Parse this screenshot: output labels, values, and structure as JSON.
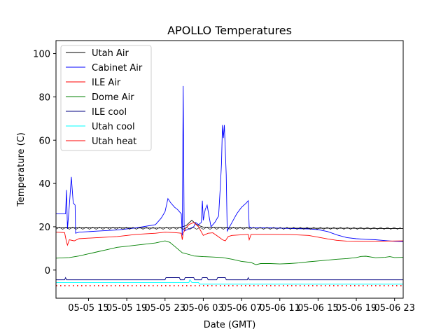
{
  "chart_data": {
    "type": "line",
    "title": "APOLLO Temperatures",
    "xlabel": "Date (GMT)",
    "ylabel": "Temperature (C)",
    "ylim": [
      -13,
      106
    ],
    "xlim": [
      11.6,
      47.9
    ],
    "x_units": "hours since 05-05 00 GMT",
    "xticks": [
      {
        "v": 15,
        "label": "05-05 15"
      },
      {
        "v": 19,
        "label": "05-05 19"
      },
      {
        "v": 23,
        "label": "05-05 23"
      },
      {
        "v": 27,
        "label": "05-06 03"
      },
      {
        "v": 31,
        "label": "05-06 07"
      },
      {
        "v": 35,
        "label": "05-06 11"
      },
      {
        "v": 39,
        "label": "05-06 15"
      },
      {
        "v": 43,
        "label": "05-06 19"
      },
      {
        "v": 47,
        "label": "05-06 23"
      }
    ],
    "yticks": [
      0,
      20,
      40,
      60,
      80,
      100
    ],
    "grid": false,
    "legend_position": "top-left",
    "series": [
      {
        "name": "Utah Air",
        "color": "#000000",
        "points": [
          [
            11.6,
            19.5
          ],
          [
            14,
            19.5
          ],
          [
            18,
            19.5
          ],
          [
            22,
            19.4
          ],
          [
            24.5,
            19.6
          ],
          [
            25.2,
            20.5
          ],
          [
            25.8,
            23
          ],
          [
            26.3,
            21
          ],
          [
            27,
            19.8
          ],
          [
            30,
            19.5
          ],
          [
            34,
            19.4
          ],
          [
            38,
            19.3
          ],
          [
            42,
            19.3
          ],
          [
            46,
            19.2
          ],
          [
            47.9,
            19.2
          ]
        ]
      },
      {
        "name": "Cabinet Air",
        "color": "#0000ff",
        "points": [
          [
            11.6,
            26
          ],
          [
            12.6,
            26
          ],
          [
            12.7,
            37
          ],
          [
            12.8,
            19
          ],
          [
            13,
            30
          ],
          [
            13.2,
            43
          ],
          [
            13.4,
            31
          ],
          [
            13.6,
            30
          ],
          [
            13.65,
            17
          ],
          [
            14,
            17.5
          ],
          [
            16,
            18
          ],
          [
            18,
            18.5
          ],
          [
            20,
            19.5
          ],
          [
            22,
            21
          ],
          [
            22.6,
            24
          ],
          [
            23,
            27
          ],
          [
            23.3,
            33
          ],
          [
            23.6,
            31
          ],
          [
            24,
            29
          ],
          [
            24.3,
            28
          ],
          [
            24.7,
            26
          ],
          [
            24.8,
            16
          ],
          [
            24.9,
            85
          ],
          [
            25,
            18
          ],
          [
            25.5,
            19
          ],
          [
            26,
            20
          ],
          [
            26.2,
            22
          ],
          [
            26.5,
            21
          ],
          [
            26.8,
            22
          ],
          [
            26.9,
            32
          ],
          [
            27.0,
            23
          ],
          [
            27.2,
            28
          ],
          [
            27.4,
            30
          ],
          [
            27.6,
            25
          ],
          [
            27.8,
            20
          ],
          [
            28.2,
            22
          ],
          [
            28.6,
            25
          ],
          [
            28.8,
            40
          ],
          [
            28.9,
            49
          ],
          [
            29.0,
            67
          ],
          [
            29.1,
            61
          ],
          [
            29.2,
            67
          ],
          [
            29.3,
            55
          ],
          [
            29.4,
            44
          ],
          [
            29.5,
            18
          ],
          [
            30,
            22
          ],
          [
            30.5,
            26
          ],
          [
            31,
            29
          ],
          [
            31.5,
            31
          ],
          [
            31.7,
            32
          ],
          [
            31.8,
            20
          ],
          [
            32,
            19.5
          ],
          [
            34,
            19.5
          ],
          [
            36,
            19.2
          ],
          [
            38,
            19
          ],
          [
            39,
            18.7
          ],
          [
            40,
            17.8
          ],
          [
            41,
            16.2
          ],
          [
            42,
            15
          ],
          [
            43,
            14.5
          ],
          [
            44,
            14.2
          ],
          [
            45,
            14.0
          ],
          [
            46,
            13.6
          ],
          [
            47,
            13.3
          ],
          [
            47.9,
            13.2
          ]
        ]
      },
      {
        "name": "ILE Air",
        "color": "#ff0000",
        "points": [
          [
            11.6,
            17.5
          ],
          [
            12.5,
            17.3
          ],
          [
            12.7,
            13
          ],
          [
            12.8,
            11.5
          ],
          [
            13,
            14
          ],
          [
            13.5,
            13.5
          ],
          [
            14,
            14.5
          ],
          [
            16,
            15
          ],
          [
            18,
            15.5
          ],
          [
            20,
            16.5
          ],
          [
            22,
            17
          ],
          [
            23,
            17.5
          ],
          [
            24,
            17.3
          ],
          [
            24.7,
            17
          ],
          [
            24.8,
            14
          ],
          [
            24.9,
            17
          ],
          [
            25.2,
            19.5
          ],
          [
            25.5,
            21
          ],
          [
            26,
            22
          ],
          [
            26.5,
            20
          ],
          [
            27,
            16
          ],
          [
            27.5,
            17
          ],
          [
            28,
            17.2
          ],
          [
            28.7,
            15
          ],
          [
            29,
            14
          ],
          [
            29.3,
            13.5
          ],
          [
            29.6,
            15.5
          ],
          [
            30,
            16
          ],
          [
            31.7,
            16.5
          ],
          [
            31.8,
            14
          ],
          [
            32,
            16.5
          ],
          [
            34,
            16.5
          ],
          [
            36,
            16.4
          ],
          [
            38,
            16
          ],
          [
            39,
            15.2
          ],
          [
            40,
            14.4
          ],
          [
            41,
            13.7
          ],
          [
            42,
            13.4
          ],
          [
            44,
            13.3
          ],
          [
            46,
            13.4
          ],
          [
            47.9,
            13.5
          ]
        ]
      },
      {
        "name": "Dome Air",
        "color": "#008000",
        "points": [
          [
            11.6,
            5.5
          ],
          [
            13,
            5.8
          ],
          [
            14,
            6.5
          ],
          [
            15,
            7.5
          ],
          [
            16,
            8.5
          ],
          [
            17,
            9.5
          ],
          [
            18,
            10.5
          ],
          [
            19,
            11
          ],
          [
            20,
            11.5
          ],
          [
            21,
            12
          ],
          [
            22,
            12.5
          ],
          [
            23,
            13.5
          ],
          [
            23.5,
            12.8
          ],
          [
            24,
            11
          ],
          [
            24.8,
            8
          ],
          [
            25.5,
            7.2
          ],
          [
            26,
            6.5
          ],
          [
            27,
            6.2
          ],
          [
            28,
            6
          ],
          [
            29,
            5.8
          ],
          [
            30,
            5
          ],
          [
            31,
            4
          ],
          [
            32,
            3.5
          ],
          [
            32.5,
            2.5
          ],
          [
            33,
            3
          ],
          [
            34,
            3
          ],
          [
            35,
            2.8
          ],
          [
            36,
            3
          ],
          [
            37,
            3.3
          ],
          [
            38,
            3.8
          ],
          [
            39,
            4.2
          ],
          [
            40,
            4.6
          ],
          [
            41,
            5
          ],
          [
            42,
            5.3
          ],
          [
            43,
            5.8
          ],
          [
            43.5,
            6.3
          ],
          [
            44,
            6.4
          ],
          [
            45,
            5.7
          ],
          [
            46,
            5.9
          ],
          [
            46.5,
            6.2
          ],
          [
            47,
            5.8
          ],
          [
            47.9,
            5.9
          ]
        ]
      },
      {
        "name": "ILE cool",
        "color": "#000080",
        "points": [
          [
            11.6,
            -4.5
          ],
          [
            12.5,
            -4.5
          ],
          [
            12.6,
            -3.5
          ],
          [
            12.7,
            -4.5
          ],
          [
            23,
            -4.5
          ],
          [
            23.1,
            -3.5
          ],
          [
            24.5,
            -3.5
          ],
          [
            24.6,
            -4.5
          ],
          [
            25,
            -4.5
          ],
          [
            25.1,
            -3.5
          ],
          [
            26,
            -3.5
          ],
          [
            26.1,
            -4.5
          ],
          [
            26.8,
            -4.5
          ],
          [
            26.9,
            -3.5
          ],
          [
            27.4,
            -3.5
          ],
          [
            27.5,
            -4.5
          ],
          [
            28.4,
            -4.5
          ],
          [
            28.5,
            -3.5
          ],
          [
            29.3,
            -3.5
          ],
          [
            29.4,
            -4.5
          ],
          [
            31.6,
            -4.5
          ],
          [
            31.7,
            -3.5
          ],
          [
            31.8,
            -4.5
          ],
          [
            47.9,
            -4.5
          ]
        ]
      },
      {
        "name": "Utah cool",
        "color": "#00ffff",
        "points": [
          [
            11.6,
            -5.7
          ],
          [
            25.5,
            -5.7
          ],
          [
            25.6,
            -4.5
          ],
          [
            25.8,
            -5.7
          ],
          [
            26.5,
            -5.7
          ],
          [
            26.6,
            -6.5
          ],
          [
            47.9,
            -6.5
          ]
        ]
      },
      {
        "name": "Utah heat",
        "color": "#ff0000",
        "dotted": true,
        "points": [
          [
            11.6,
            -7.2
          ],
          [
            47.9,
            -7.2
          ]
        ]
      }
    ]
  }
}
